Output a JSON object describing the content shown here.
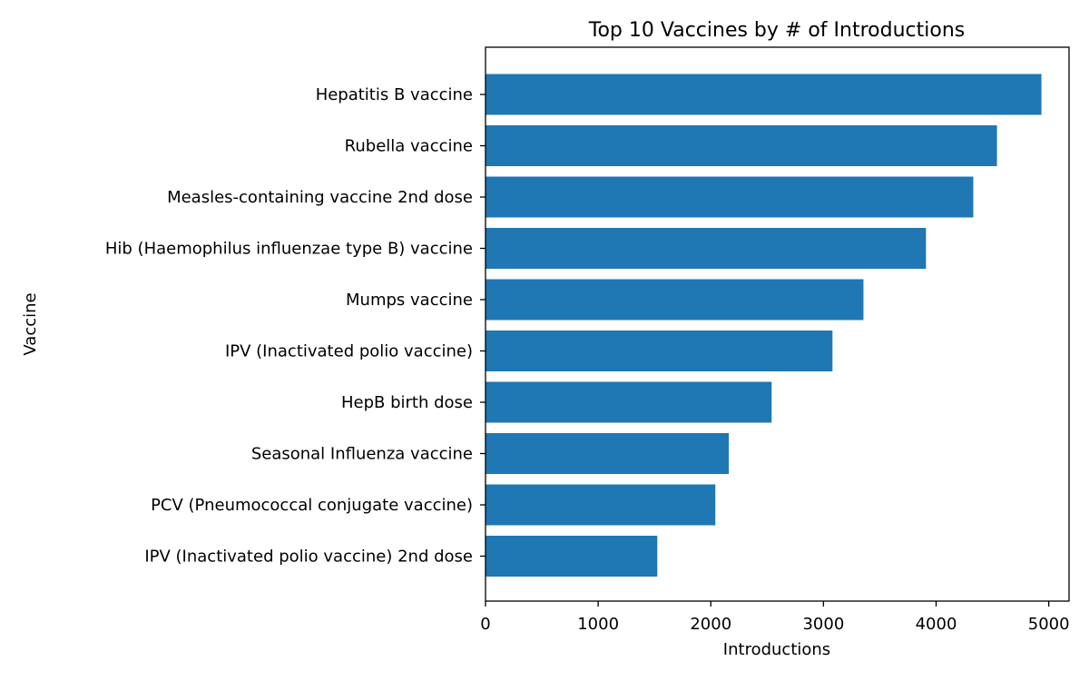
{
  "chart_data": {
    "type": "bar",
    "orientation": "horizontal",
    "title": "Top 10 Vaccines by # of Introductions",
    "xlabel": "Introductions",
    "ylabel": "Vaccine",
    "categories": [
      "Hepatitis B vaccine",
      "Rubella vaccine",
      "Measles-containing vaccine 2nd dose",
      "Hib (Haemophilus influenzae type B) vaccine",
      "Mumps vaccine",
      "IPV (Inactivated polio vaccine)",
      "HepB birth dose",
      "Seasonal Influenza vaccine",
      "PCV (Pneumococcal conjugate vaccine)",
      "IPV (Inactivated polio vaccine) 2nd dose"
    ],
    "values": [
      4935,
      4540,
      4330,
      3910,
      3355,
      3080,
      2540,
      2160,
      2040,
      1525
    ],
    "xlim": [
      0,
      5180
    ],
    "xticks": [
      0,
      1000,
      2000,
      3000,
      4000,
      5000
    ],
    "grid": false,
    "legend": "none",
    "bar_color": "#1f77b4"
  }
}
